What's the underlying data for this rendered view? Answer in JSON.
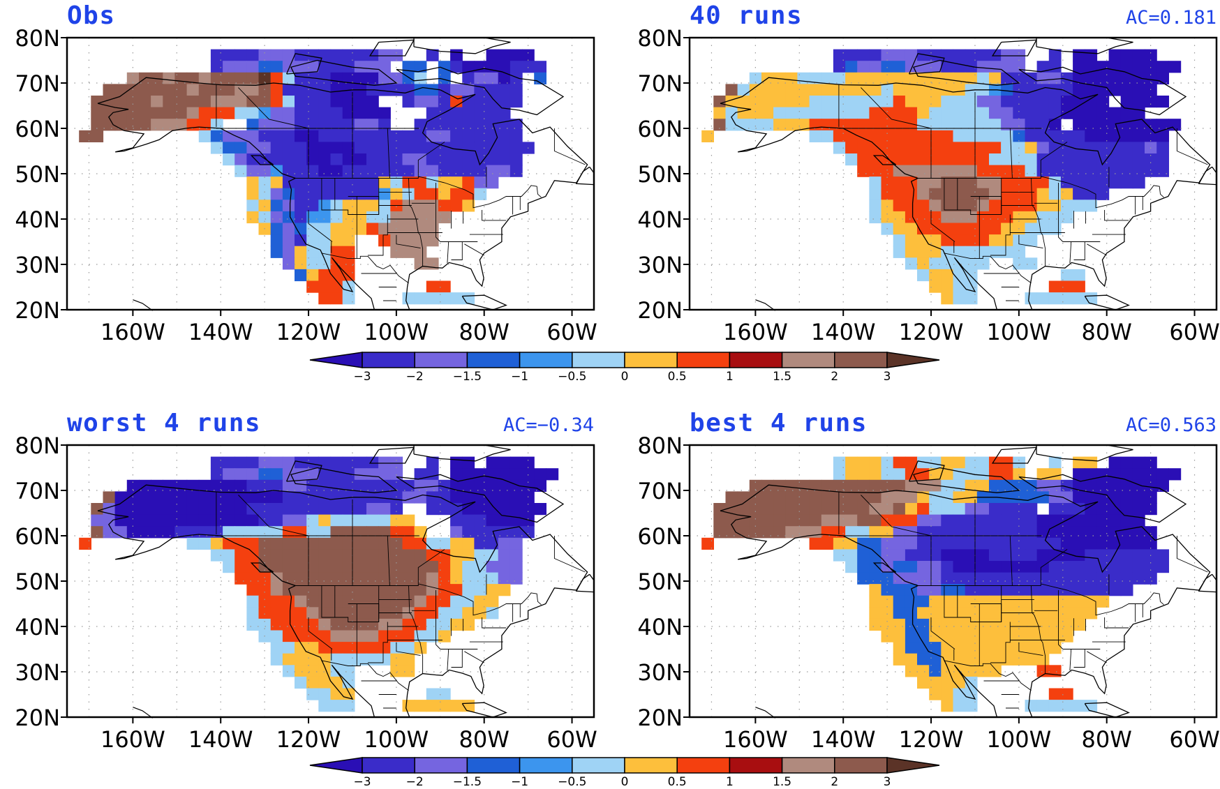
{
  "figure": {
    "panels": [
      {
        "id": "obs",
        "title": "Obs",
        "ac": ""
      },
      {
        "id": "all40",
        "title": "40 runs",
        "ac": "AC=0.181"
      },
      {
        "id": "worst",
        "title": "worst 4 runs",
        "ac": "AC=−0.34"
      },
      {
        "id": "best",
        "title": "best 4 runs",
        "ac": "AC=0.563"
      }
    ],
    "lat_ticks": [
      "80N",
      "70N",
      "60N",
      "50N",
      "40N",
      "30N",
      "20N"
    ],
    "lon_ticks": [
      "160W",
      "140W",
      "120W",
      "100W",
      "80W",
      "60W"
    ],
    "colorbar": {
      "labels": [
        "−3",
        "−2",
        "−1.5",
        "−1",
        "−0.5",
        "0",
        "0.5",
        "1",
        "1.5",
        "2",
        "3"
      ],
      "colors": [
        "#2a0fb5",
        "#3a2cc9",
        "#7565e0",
        "#1f60d6",
        "#3c95ee",
        "#9fd3f5",
        "#fdbf3c",
        "#f4400f",
        "#a80e10",
        "#b08a7e",
        "#8d5a4d",
        "#5b3327"
      ]
    }
  },
  "chart_data": [
    {
      "type": "heatmap",
      "title": "Obs",
      "x_range": [
        "175W",
        "55W"
      ],
      "y_range": [
        "20N",
        "80N"
      ],
      "legend_placement": "bottom",
      "pattern": [
        "--------------------------------------------",
        "------------BBBBCCCBBBBBBBCC--B-A--AAAA-----",
        "------------BCCCDDCCCBBBCCC-DD-DBAAAABBB----",
        "-----JKKJKKJKKKKLHFBBBAAAACCDF-D-BCCAB-D----",
        "---KKKKKKKJKKKJJKHBBBBAAABBBBDDBCCBBBB-----",
        "--KKKKKJKKKKJJJKKHFBBBAAAA--BCCBHBBBBB-----",
        "--KKKKKKKKJHHHFFECCBBBBAAAA---BBBBBBB------",
        "--KKKKKJJJHHF--DCCCBBBBBCCB--BBBBBBBBB-----",
        "-KK--------FDCCCBBBAABBBBBBBBBCCBBBBBB-----",
        "------------FDDCCBBBAAAABBBBBBBBBBBBBBB----",
        "-------------FCBBBBBAABAABBBCCBBBBBBBB-----",
        "--------------FCCEBBBAABBBBBBCCBBBBCCB-----",
        "---------------GFGBBBBBBBBGFHHFGGHCC------",
        "---------------GFCDBBBBBBBEGFHHGHHF-------",
        "---------------FGDCBBEFGGGFHJJJHHG--------",
        "---------------GFCDBEEFGGFFJJJJJ----------",
        "----------------GDCDFFGGGHJJJJJ-----------",
        "-----------------DCBFFGG--HJJJJ-----------",
        "-----------------DCGFFHH---JJJ------------",
        "------------------CGFFHH-----JJ-----------",
        "-------------------DGHHH------------------",
        "--------------------HHHF------HH----------",
        "---------------------HHF----FFFFFF--------"
      ]
    },
    {
      "type": "heatmap",
      "title": "40 runs",
      "x_range": [
        "175W",
        "55W"
      ],
      "y_range": [
        "20N",
        "80N"
      ],
      "legend_placement": "bottom",
      "pattern": [
        "--------------------------------------------",
        "------------BBBBCCCBBBBBBBCC--B-AA-AAAA-----",
        "------------BDCCDDCCCBBBCCCC-BB-AAAAAAAAA---",
        "-----FGGGFFFFGGGGGGGGGGGFGBBBCCBAAAAAAAA----",
        "---KFGGGGGGGGGGGFGGGGGGFFEDBBBBBAAAAAAA-----",
        "--KGGGGGGGFFFFFFFHGGGFFFCCBBBBBAAAA-AAAA----",
        "--GFGGGFFFFFFFFHHHHGFFFFFCCBBBBAAAAAAA------",
        "--KFFFFGGGHHHHHHHHHFFFFFFFCCBBA-AAAAAAAAA---",
        "-G--------FFHHHHHHHHHHFFFFFDBBBBBAAAAAAA----",
        "------------FHHHHHHHHHHHHHFFGCBBBBBBBBCB----",
        "-------------FHHHHHHHHHHHFFFFBBBBBBBBBBB----",
        "--------------HHHJJJJJJJHHHHFBBBBBBBBBBB----",
        "---------------FHHHJJKKKJJHHHHFBBBBBBB------",
        "---------------FHHHJKKKKKJHHHGFGBBB--------",
        "---------------FGHHHJKKKJHHHHGGFFF---------",
        "---------------FGGHHHJJJHHHGGFFF-----------",
        "----------------FGGHHHHHHHGGFFF------------",
        "-----------------FGGGHHHHGGFF--------------",
        "-----------------FGGGFFFFFFF---------------",
        "------------------FGFFFFF--FF--------------",
        "-------------------FGGFF-------FF----------",
        "--------------------GGFF------HHH----------",
        "---------------------GFF----FFFFFF--------"
      ]
    },
    {
      "type": "heatmap",
      "title": "worst 4 runs",
      "x_range": [
        "175W",
        "55W"
      ],
      "y_range": [
        "20N",
        "80N"
      ],
      "legend_placement": "bottom",
      "pattern": [
        "--------------------------------------------",
        "------------BBBBCCCBBBBBBBCC--B-AA-AAAA-----",
        "------------BCCCDDCCCBBBCCCC-BB-AAAAAAAAA---",
        "-----AAAAAAAAAABBBCCBBBBBBBBBCCBAAAAAAAA----",
        "---KAAAAAAAAAAAAAABBBBBBBBBBCCBBAAAAAAA-----",
        "--KCAAAAAAAAAAABBBBBBBBBBCCB--BBBAAAAAAA----",
        "--CCAAAAAAAAAAAABBCCFGFFFFFGG---BBBAAAA-----",
        "--KCCAAAABBBBFFFFFHHFFKKKKKHHG--CBBBBBB-----",
        "-H--------FFGHHHKKKKKKKKKKKKHHFFGGBBCC-----",
        "------------FFHHKKKKKKKKKKKKKKHHGGFFCC-----",
        "-------------FHHKKKKKKKKKKKKKKKHGFFCCC-----",
        "--------------HHHJKKKKKKKKKKKKJHGFFFCC-----",
        "---------------HHJKKKKKKKKKKKKJHHFFGG------",
        "---------------FHHHJKKKKKKKKKJHHFFGG-------",
        "---------------FHHHHJKKKKKKKJHHFFGGF-------",
        "---------------FFHHHHJKKKKJJHHFFGG---------",
        "----------------FFHHHHJJJJHHHFFG-----------",
        "-----------------FFGGHHHHHHFFG-------------",
        "-----------------FGGGGFFFFFGG--------------",
        "------------------FGGGFF---GG--------------",
        "-------------------FGGGF-------------------",
        "--------------------FFGG------FF----------",
        "---------------------FFF----GGGGGG--------"
      ]
    },
    {
      "type": "heatmap",
      "title": "best 4 runs",
      "x_range": [
        "175W",
        "55W"
      ],
      "y_range": [
        "20N",
        "80N"
      ],
      "legend_placement": "bottom",
      "pattern": [
        "--------------------------------------------",
        "------------FGGGFHHFFGGFFHHF--F-GG-AAAA-----",
        "------------FGGGFFHHGGFFFHHG-GG-AAAAAAAAA---",
        "-----KKKKKKKKKKKKKJJJFFGGDDDDCCBAAAAAAAA----",
        "---KKKKKKKKKKKKKJJJGFFGGDDDDDDCCAAAAAAA-----",
        "--KKKKKKKKKKKKKJJKGHFFFCCBBBB-BBBAAAAAA-----",
        "--KKKKKKKKKJJJKKHHHCCBBBBBBBBAAAAAAAAA------",
        "--KKKKKKJJJHHFFGGCCBBBBBBBBBBAAAAAAAAAA-----",
        "-H--------HHGGDDCCCBBBBBBBBBBBBAAAAAAAA-----",
        "------------FFDDCCBBBAAAABBBBAAAABBBBBBB----",
        "-------------FDDCDDCCBAAAAAAAABBBBBBBBBB----",
        "--------------DDDCCCCBBBBBBBBBBBBBBBBBB-----",
        "---------------GDDDCCDDBBBBBBBBBBBBBB-------",
        "---------------GGDDDGGGGGGGGGGGGGGG--------",
        "---------------GGDDGGGGGGGGGGGGGGG---------",
        "---------------GGGDDGGGGGGGGGGGGG----------",
        "----------------GGDDGGGGGGGGGGGG-----------",
        "-----------------GDDDGGGGGGGGGG------------",
        "-----------------GGDDGGGGGGGGG-------------",
        "------------------GGDGGGGG---HH------------",
        "-------------------GGGGF-------------------",
        "--------------------GGFF------HH----------",
        "---------------------GFF----FFFFFF--------"
      ]
    }
  ]
}
